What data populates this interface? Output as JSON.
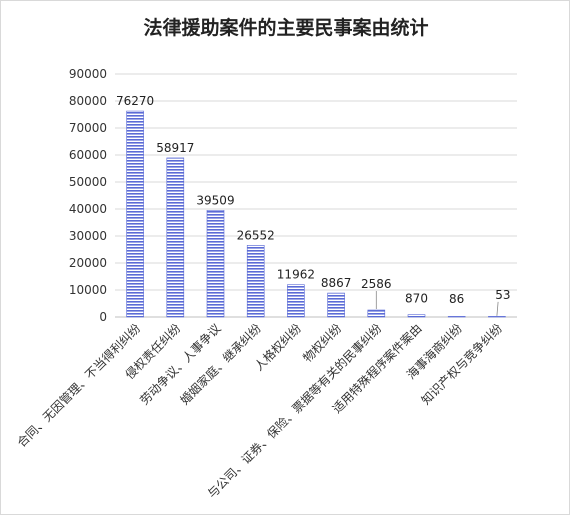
{
  "chart_data": {
    "type": "bar",
    "title": "法律援助案件的主要民事案由统计",
    "categories": [
      "合同、无因管理、不当得利纠纷",
      "侵权责任纠纷",
      "劳动争议、人事争议",
      "婚姻家庭、继承纠纷",
      "人格权纠纷",
      "物权纠纷",
      "与公司、证券、保险、票据等有关的民事纠纷",
      "适用特殊程序案件案由",
      "海事海商纠纷",
      "知识产权与竞争纠纷"
    ],
    "values": [
      76270,
      58917,
      39509,
      26552,
      11962,
      8867,
      2586,
      870,
      86,
      53
    ],
    "data_labels": [
      "76270",
      "58917",
      "39509",
      "26552",
      "11962",
      "8867",
      "2586",
      "870",
      "86",
      "53"
    ],
    "yticks": [
      "0",
      "10000",
      "20000",
      "30000",
      "40000",
      "50000",
      "60000",
      "70000",
      "80000",
      "90000"
    ],
    "ylim": [
      0,
      90000
    ],
    "grid": true,
    "bar_color": "#5b6bd6"
  }
}
